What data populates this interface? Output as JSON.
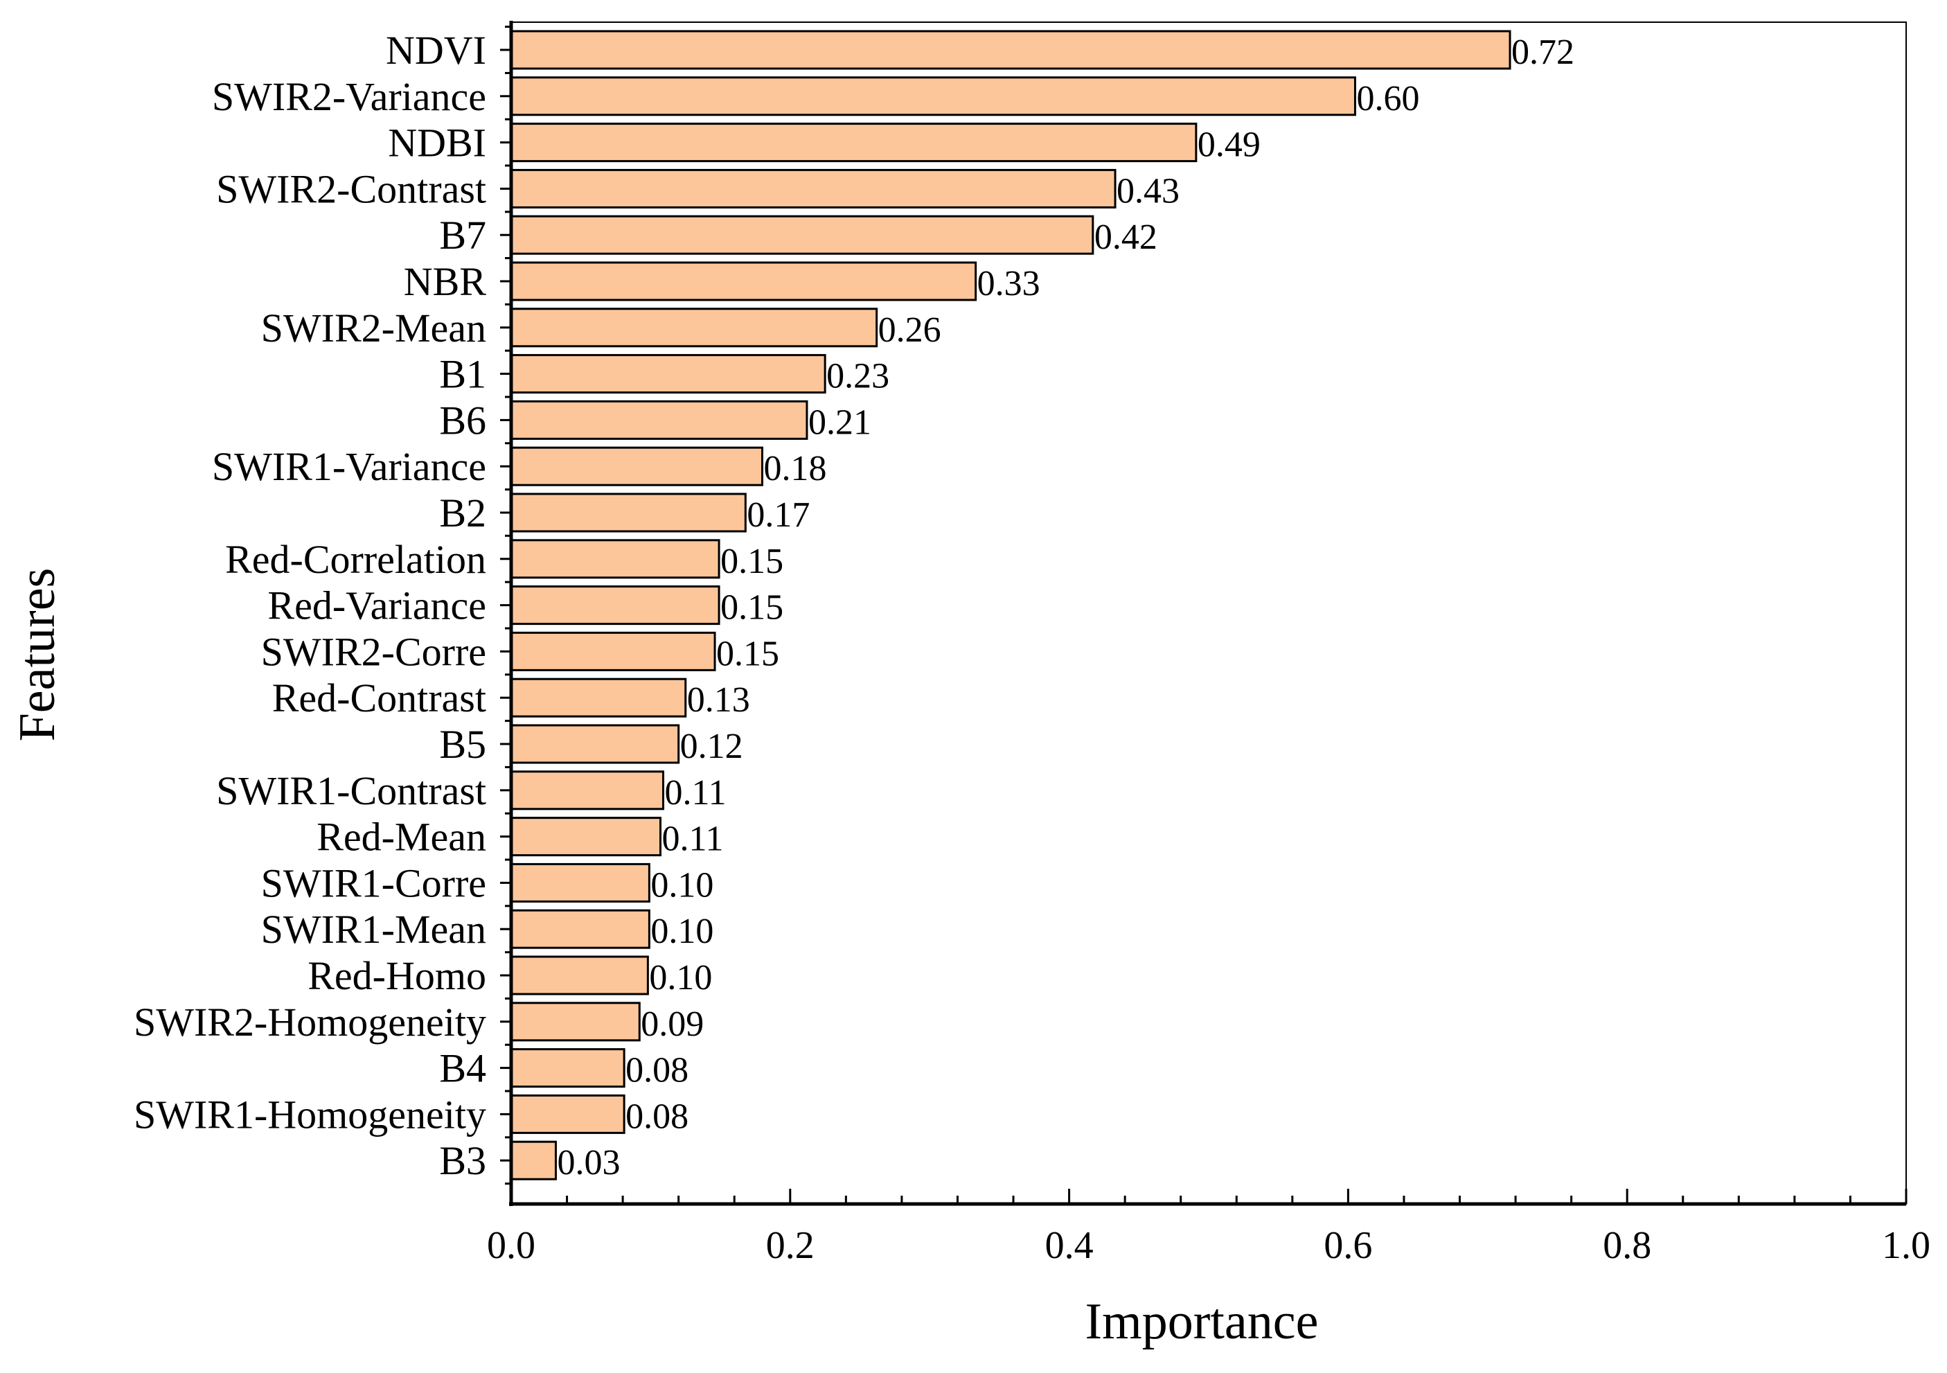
{
  "chart_data": {
    "type": "bar",
    "orientation": "horizontal",
    "xlabel": "Importance",
    "ylabel": "Features",
    "xlim": [
      0.0,
      1.0
    ],
    "x_ticks": [
      "0.0",
      "0.2",
      "0.4",
      "0.6",
      "0.8",
      "1.0"
    ],
    "x_tick_values": [
      0.0,
      0.2,
      0.4,
      0.6,
      0.8,
      1.0
    ],
    "categories": [
      "NDVI",
      "SWIR2-Variance",
      "NDBI",
      "SWIR2-Contrast",
      "B7",
      "NBR",
      "SWIR2-Mean",
      "B1",
      "B6",
      "SWIR1-Variance",
      "B2",
      "Red-Correlation",
      "Red-Variance",
      "SWIR2-Corre",
      "Red-Contrast",
      "B5",
      "SWIR1-Contrast",
      "Red-Mean",
      "SWIR1-Corre",
      "SWIR1-Mean",
      "Red-Homo",
      "SWIR2-Homogeneity",
      "B4",
      "SWIR1-Homogeneity",
      "B3"
    ],
    "values": [
      0.716,
      0.605,
      0.491,
      0.433,
      0.417,
      0.333,
      0.262,
      0.225,
      0.212,
      0.18,
      0.168,
      0.149,
      0.149,
      0.146,
      0.125,
      0.12,
      0.109,
      0.107,
      0.099,
      0.099,
      0.098,
      0.092,
      0.081,
      0.081,
      0.032
    ],
    "labels": [
      "0.72",
      "0.60",
      "0.49",
      "0.43",
      "0.42",
      "0.33",
      "0.26",
      "0.23",
      "0.21",
      "0.18",
      "0.17",
      "0.15",
      "0.15",
      "0.15",
      "0.13",
      "0.12",
      "0.11",
      "0.11",
      "0.10",
      "0.10",
      "0.10",
      "0.09",
      "0.08",
      "0.08",
      "0.03"
    ],
    "bar_color": "#fcc69a",
    "bar_edge_color": "#000000",
    "grid": false
  }
}
